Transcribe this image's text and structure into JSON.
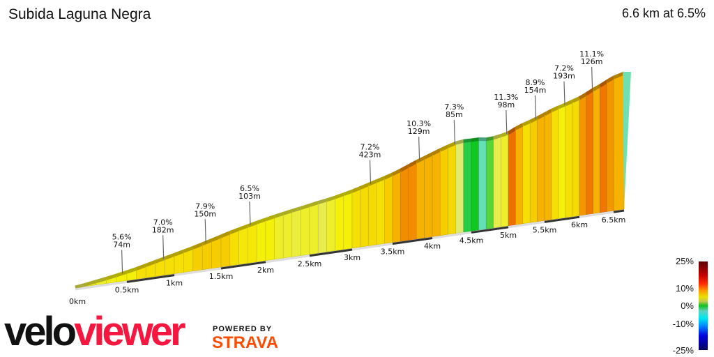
{
  "header": {
    "title": "Subida Laguna Negra",
    "summary": "6.6 km at 6.5%"
  },
  "chart_data": {
    "type": "area",
    "title": "Subida Laguna Negra",
    "total_distance_km": 6.6,
    "average_gradient_pct": 6.5,
    "x_ticks": [
      "0km",
      "0.5km",
      "1km",
      "1.5km",
      "2km",
      "2.5km",
      "3km",
      "3.5km",
      "4km",
      "4.5km",
      "5km",
      "5.5km",
      "6km",
      "6.5km"
    ],
    "x_tick_values": [
      0,
      0.5,
      1,
      1.5,
      2,
      2.5,
      3,
      3.5,
      4,
      4.5,
      5,
      5.5,
      6,
      6.5
    ],
    "segment_length_km": 0.1,
    "segment_gradients_pct": [
      4,
      5,
      5,
      5.6,
      6,
      6,
      7,
      7,
      7,
      7,
      7,
      7,
      7.9,
      8,
      8,
      8,
      7,
      6.5,
      6.5,
      6,
      6,
      5,
      5,
      4.5,
      5,
      5,
      4,
      5,
      6,
      6,
      7,
      7.2,
      7.2,
      7,
      8,
      9,
      10.3,
      10.3,
      9,
      9,
      9,
      8,
      7.3,
      3,
      -1,
      0,
      -4,
      1,
      4,
      5,
      11.3,
      9,
      7,
      8,
      9,
      8.9,
      7,
      6,
      7,
      7.2,
      10,
      11,
      9,
      11.1,
      10,
      9
    ],
    "annotations": [
      {
        "km": 0.45,
        "gradient": "5.6%",
        "length": "74m"
      },
      {
        "km": 0.88,
        "gradient": "7.0%",
        "length": "182m"
      },
      {
        "km": 1.33,
        "gradient": "7.9%",
        "length": "150m"
      },
      {
        "km": 1.82,
        "gradient": "6.5%",
        "length": "103m"
      },
      {
        "km": 3.22,
        "gradient": "7.2%",
        "length": "423m"
      },
      {
        "km": 3.83,
        "gradient": "10.3%",
        "length": "129m"
      },
      {
        "km": 4.28,
        "gradient": "7.3%",
        "length": "85m"
      },
      {
        "km": 4.97,
        "gradient": "11.3%",
        "length": "98m"
      },
      {
        "km": 5.37,
        "gradient": "8.9%",
        "length": "154m"
      },
      {
        "km": 5.78,
        "gradient": "7.2%",
        "length": "193m"
      },
      {
        "km": 6.18,
        "gradient": "11.1%",
        "length": "126m"
      }
    ],
    "legend": {
      "labels": [
        "25%",
        "10%",
        "0%",
        "-10%",
        "-25%"
      ],
      "range": [
        -25,
        25
      ]
    },
    "grid": false
  },
  "branding": {
    "logo_velo": "velo",
    "logo_viewer": "viewer",
    "powered_by": "POWERED BY",
    "strava": "STRAVA",
    "velo_color": "#111111",
    "viewer_color": "#f5173f",
    "strava_color": "#fc4c02"
  }
}
